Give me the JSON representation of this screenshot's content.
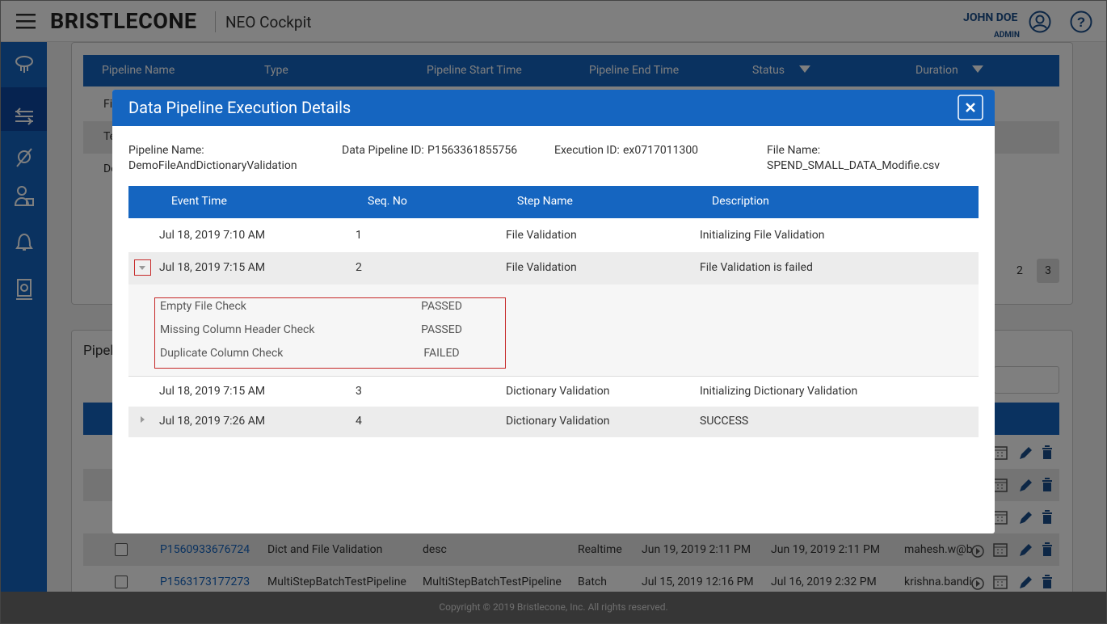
{
  "header": {
    "brand": "BRISTLECONE",
    "app": "NEO Cockpit",
    "user": "JOHN DOE",
    "role": "ADMIN"
  },
  "background": {
    "table1": {
      "columns": [
        "Pipeline Name",
        "Type",
        "Pipeline Start Time",
        "Pipeline End Time",
        "Status",
        "Duration"
      ],
      "rows": [
        "Fi",
        "Te",
        "De"
      ],
      "pages": [
        "2",
        "3"
      ]
    },
    "panel2": {
      "title": "Pipel",
      "rows": [
        [
          "P1560933676724",
          "Dict and File Validation",
          "desc",
          "Realtime",
          "Jun 19, 2019 2:11 PM",
          "Jun 19, 2019 2:11 PM",
          "mahesh.w@b"
        ],
        [
          "P1563173177273",
          "MultiStepBatchTestPipeline",
          "MultiStepBatchTestPipeline",
          "Batch",
          "Jul 15, 2019 12:16 PM",
          "Jul 16, 2019 2:32 PM",
          "krishna.bandi"
        ]
      ]
    }
  },
  "footer": "Copyright © 2019 Bristlecone, Inc. All rights reserved.",
  "modal": {
    "title": "Data Pipeline Execution Details",
    "info": [
      {
        "label": "Pipeline Name:",
        "value": "DemoFileAndDictionaryValidation"
      },
      {
        "label": "Data Pipeline ID:",
        "value": "P1563361855756"
      },
      {
        "label": "Execution ID:",
        "value": "ex0717011300"
      },
      {
        "label": "File Name:",
        "value": "SPEND_SMALL_DATA_Modifie.csv"
      }
    ],
    "columns": [
      "Event Time",
      "Seq. No",
      "Step Name",
      "Description"
    ],
    "rows": [
      {
        "time": "Jul 18, 2019 7:10 AM",
        "seq": 1,
        "step": "File Validation",
        "desc": "Initializing File Validation"
      },
      {
        "time": "Jul 18, 2019 7:15 AM",
        "seq": 2,
        "step": "File Validation",
        "desc": "File Validation is failed"
      },
      {
        "time": "Jul 18, 2019 7:15 AM",
        "seq": 3,
        "step": "Dictionary Validation",
        "desc": "Initializing Dictionary Validation"
      },
      {
        "time": "Jul 18, 2019 7:26 AM",
        "seq": 4,
        "step": "Dictionary Validation",
        "desc": "SUCCESS"
      }
    ],
    "checks": [
      {
        "name": "Empty File Check",
        "status": "PASSED"
      },
      {
        "name": "Missing Column Header Check",
        "status": "PASSED"
      },
      {
        "name": "Duplicate Column Check",
        "status": "FAILED"
      }
    ]
  }
}
